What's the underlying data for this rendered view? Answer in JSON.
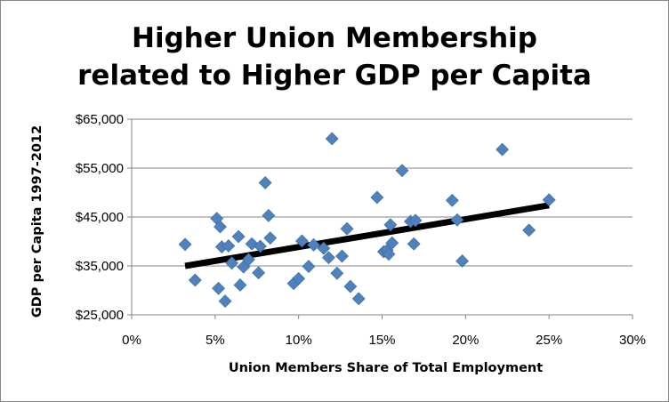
{
  "chart_data": {
    "type": "scatter",
    "title_lines": [
      "Higher Union Membership",
      "related to Higher GDP per Capita"
    ],
    "xlabel": "Union Members Share of Total Employment",
    "ylabel": "GDP per Capita 1997-2012",
    "xlim": [
      0,
      0.3
    ],
    "ylim": [
      25000,
      65000
    ],
    "x_ticks": [
      0,
      0.05,
      0.1,
      0.15,
      0.2,
      0.25,
      0.3
    ],
    "x_tick_labels": [
      "0%",
      "5%",
      "10%",
      "15%",
      "20%",
      "25%",
      "30%"
    ],
    "y_ticks": [
      25000,
      35000,
      45000,
      55000,
      65000
    ],
    "y_tick_labels": [
      "$25,000",
      "$35,000",
      "$45,000",
      "$55,000",
      "$65,000"
    ],
    "grid": {
      "horizontal": true,
      "vertical": false
    },
    "legend": "none",
    "series": [
      {
        "marker": "diamond",
        "color": "#4F81BD",
        "points": [
          [
            0.032,
            39400
          ],
          [
            0.038,
            32100
          ],
          [
            0.051,
            44700
          ],
          [
            0.052,
            30400
          ],
          [
            0.053,
            43000
          ],
          [
            0.054,
            38900
          ],
          [
            0.056,
            27800
          ],
          [
            0.058,
            39100
          ],
          [
            0.06,
            35600
          ],
          [
            0.064,
            41000
          ],
          [
            0.065,
            31100
          ],
          [
            0.067,
            34800
          ],
          [
            0.07,
            36300
          ],
          [
            0.072,
            39500
          ],
          [
            0.076,
            33600
          ],
          [
            0.077,
            39000
          ],
          [
            0.08,
            52000
          ],
          [
            0.082,
            45300
          ],
          [
            0.083,
            40700
          ],
          [
            0.097,
            31400
          ],
          [
            0.1,
            32400
          ],
          [
            0.102,
            40100
          ],
          [
            0.106,
            34900
          ],
          [
            0.109,
            39300
          ],
          [
            0.115,
            38600
          ],
          [
            0.118,
            36700
          ],
          [
            0.12,
            61000
          ],
          [
            0.123,
            33500
          ],
          [
            0.126,
            37000
          ],
          [
            0.129,
            42600
          ],
          [
            0.131,
            30800
          ],
          [
            0.136,
            28300
          ],
          [
            0.147,
            49000
          ],
          [
            0.151,
            37900
          ],
          [
            0.153,
            38200
          ],
          [
            0.154,
            37400
          ],
          [
            0.155,
            43400
          ],
          [
            0.156,
            39700
          ],
          [
            0.162,
            54500
          ],
          [
            0.167,
            44100
          ],
          [
            0.169,
            39500
          ],
          [
            0.17,
            44300
          ],
          [
            0.192,
            48400
          ],
          [
            0.195,
            44400
          ],
          [
            0.198,
            36000
          ],
          [
            0.222,
            58800
          ],
          [
            0.238,
            42300
          ],
          [
            0.25,
            48500
          ]
        ]
      }
    ],
    "trendline": {
      "type": "linear",
      "color": "#000000",
      "from": [
        0.032,
        35000
      ],
      "to": [
        0.25,
        47400
      ]
    }
  }
}
